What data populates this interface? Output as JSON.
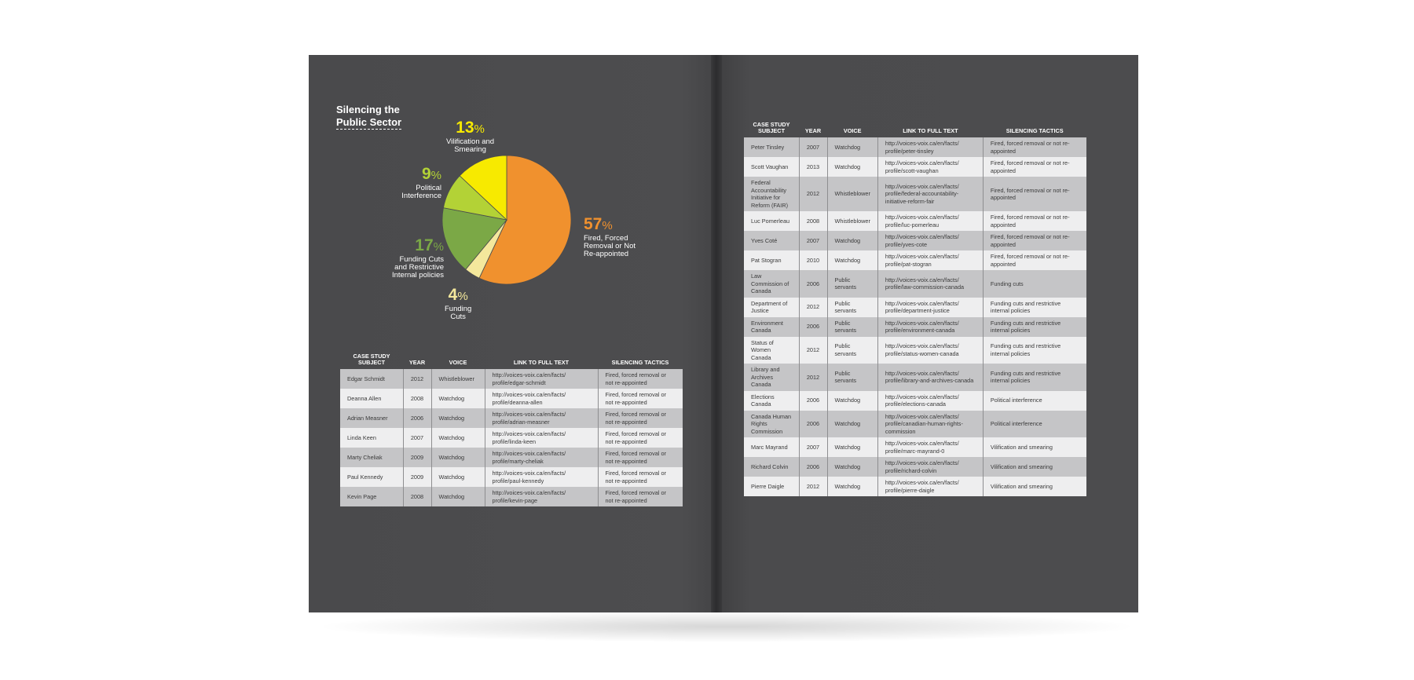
{
  "left_page": {
    "title_line1": "Silencing the",
    "title_line2": "Public Sector"
  },
  "chart_data": {
    "type": "pie",
    "title": "Silencing the Public Sector",
    "slices": [
      {
        "label": "Fired, Forced Removal or Not Re-appointed",
        "value": 57,
        "color": "#f0912e"
      },
      {
        "label": "Funding Cuts",
        "value": 4,
        "color": "#f4e89c"
      },
      {
        "label": "Funding Cuts and Restrictive Internal policies",
        "value": 17,
        "color": "#7ba846"
      },
      {
        "label": "Political Interference",
        "value": 9,
        "color": "#b3d236"
      },
      {
        "label": "Vilification and Smearing",
        "value": 13,
        "color": "#f7ea00"
      }
    ],
    "labels": {
      "fired": {
        "pct": "57",
        "lines": [
          "Fired, Forced",
          "Removal or Not",
          "Re-appointed"
        ]
      },
      "funding": {
        "pct": "4",
        "lines": [
          "Funding",
          "Cuts"
        ]
      },
      "funding_policies": {
        "pct": "17",
        "lines": [
          "Funding Cuts",
          "and Restrictive",
          "Internal policies"
        ]
      },
      "political": {
        "pct": "9",
        "lines": [
          "Political",
          "Interference"
        ]
      },
      "vilification": {
        "pct": "13",
        "lines": [
          "Vilification and",
          "Smearing"
        ]
      }
    },
    "pct_sign": "%"
  },
  "table_headers": [
    "Case Study Subject",
    "Year",
    "Voice",
    "Link to full text",
    "Silencing Tactics"
  ],
  "left_table": [
    [
      "Edgar Schmidt",
      "2012",
      "Whistleblower",
      "http://voices-voix.ca/en/facts/ profile/edgar-schmidt",
      "Fired, forced removal or not re-appointed"
    ],
    [
      "Deanna Allen",
      "2008",
      "Watchdog",
      "http://voices-voix.ca/en/facts/ profile/deanna-allen",
      "Fired, forced removal or not re-appointed"
    ],
    [
      "Adrian Measner",
      "2006",
      "Watchdog",
      "http://voices-voix.ca/en/facts/ profile/adrian-measner",
      "Fired, forced removal or not re-appointed"
    ],
    [
      "Linda Keen",
      "2007",
      "Watchdog",
      "http://voices-voix.ca/en/facts/ profile/linda-keen",
      "Fired, forced removal or not re-appointed"
    ],
    [
      "Marty Cheliak",
      "2009",
      "Watchdog",
      "http://voices-voix.ca/en/facts/ profile/marty-cheliak",
      "Fired, forced removal or not re-appointed"
    ],
    [
      "Paul Kennedy",
      "2009",
      "Watchdog",
      "http://voices-voix.ca/en/facts/ profile/paul-kennedy",
      "Fired, forced removal or not re-appointed"
    ],
    [
      "Kevin Page",
      "2008",
      "Watchdog",
      "http://voices-voix.ca/en/facts/ profile/kevin-page",
      "Fired, forced removal or not re-appointed"
    ]
  ],
  "right_table": [
    [
      "Peter Tinsley",
      "2007",
      "Watchdog",
      "http://voices-voix.ca/en/facts/ profile/peter-tinsley",
      "Fired, forced removal or not re-appointed"
    ],
    [
      "Scott Vaughan",
      "2013",
      "Watchdog",
      "http://voices-voix.ca/en/facts/ profile/scott-vaughan",
      "Fired, forced removal or not re-appointed"
    ],
    [
      "Federal Accountability Initiative for Reform (FAIR)",
      "2012",
      "Whistleblower",
      "http://voices-voix.ca/en/facts/ profile/federal-accountability- initiative-reform-fair",
      "Fired, forced removal or not re-appointed"
    ],
    [
      "Luc Pomerleau",
      "2008",
      "Whistleblower",
      "http://voices-voix.ca/en/facts/ profile/luc-pomerleau",
      "Fired, forced removal or not re-appointed"
    ],
    [
      "Yves Coté",
      "2007",
      "Watchdog",
      "http://voices-voix.ca/en/facts/ profile/yves-cote",
      "Fired, forced removal or not re-appointed"
    ],
    [
      "Pat Stogran",
      "2010",
      "Watchdog",
      "http://voices-voix.ca/en/facts/ profile/pat-stogran",
      "Fired, forced removal or not re-appointed"
    ],
    [
      "Law Commission of Canada",
      "2006",
      "Public servants",
      "http://voices-voix.ca/en/facts/ profile/law-commission-canada",
      "Funding cuts"
    ],
    [
      "Department of Justice",
      "2012",
      "Public servants",
      "http://voices-voix.ca/en/facts/ profile/department-justice",
      "Funding cuts and restrictive internal policies"
    ],
    [
      "Environment Canada",
      "2006",
      "Public servants",
      "http://voices-voix.ca/en/facts/ profile/environment-canada",
      "Funding cuts and restrictive internal policies"
    ],
    [
      "Status of Women Canada",
      "2012",
      "Public servants",
      "http://voices-voix.ca/en/facts/ profile/status-women-canada",
      "Funding cuts and restrictive internal policies"
    ],
    [
      "Library and Archives Canada",
      "2012",
      "Public servants",
      "http://voices-voix.ca/en/facts/ profile/library-and-archives-canada",
      "Funding cuts and restrictive internal policies"
    ],
    [
      "Elections Canada",
      "2006",
      "Watchdog",
      "http://voices-voix.ca/en/facts/ profile/elections-canada",
      "Political interference"
    ],
    [
      "Canada Human Rights Commission",
      "2006",
      "Watchdog",
      "http://voices-voix.ca/en/facts/ profile/canadian-human-rights- commission",
      "Political interference"
    ],
    [
      "Marc Mayrand",
      "2007",
      "Watchdog",
      "http://voices-voix.ca/en/facts/ profile/marc-mayrand-0",
      "Vilification and smearing"
    ],
    [
      "Richard Colvin",
      "2006",
      "Watchdog",
      "http://voices-voix.ca/en/facts/ profile/richard-colvin",
      "Vilification and smearing"
    ],
    [
      "Pierre Daigle",
      "2012",
      "Watchdog",
      "http://voices-voix.ca/en/facts/ profile/pierre-daigle",
      "Vilification and smearing"
    ]
  ]
}
